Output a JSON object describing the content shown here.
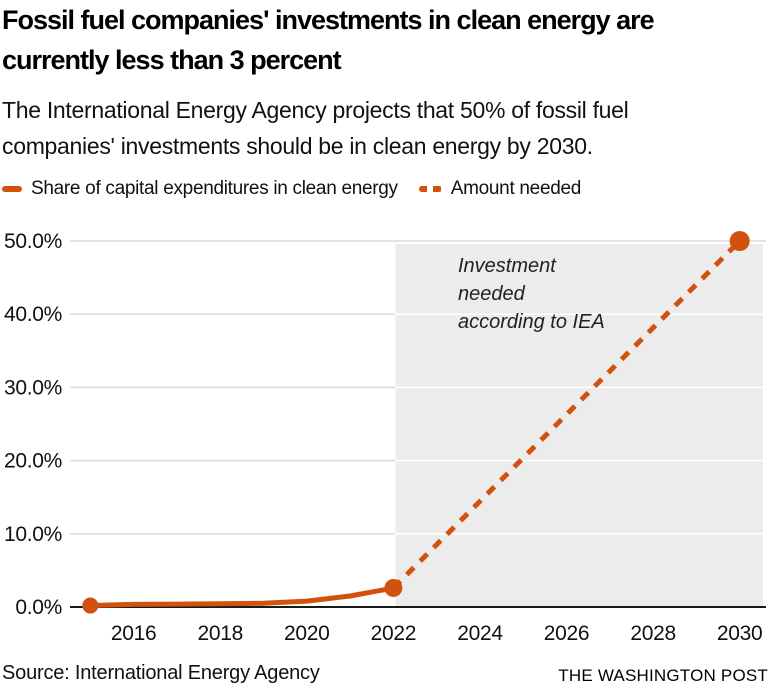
{
  "header": {
    "title_line1": "Fossil fuel companies' investments in clean energy are",
    "title_line2": "currently less than 3 percent",
    "subtitle_line1": "The International Energy Agency projects that 50% of fossil fuel",
    "subtitle_line2": "companies' investments should be in clean energy by 2030."
  },
  "legend": {
    "series1_label": "Share of capital expenditures in clean energy",
    "series2_label": "Amount needed"
  },
  "annotation": {
    "text": "Investment\nneeded\naccording to IEA"
  },
  "footer": {
    "source": "Source: International Energy Agency",
    "branding": "THE WASHINGTON POST"
  },
  "colors": {
    "accent": "#d2510e",
    "projection_bg": "#ececec",
    "gridline": "#d9d9d9",
    "gridline_on_shade": "#ffffff",
    "axis": "#1a1a1a"
  },
  "chart_data": {
    "type": "line",
    "title": "Fossil fuel companies' investments in clean energy are currently less than 3 percent",
    "xlabel": "",
    "ylabel": "Share of capital expenditures in clean energy",
    "xlim": [
      2014.53,
      2030.7
    ],
    "ylim": [
      0,
      50
    ],
    "xticks": [
      2016,
      2018,
      2020,
      2022,
      2024,
      2026,
      2028,
      2030
    ],
    "yticks": [
      0,
      10,
      20,
      30,
      40,
      50
    ],
    "ytick_labels": [
      "0.0%",
      "10.0%",
      "20.0%",
      "30.0%",
      "40.0%",
      "50.0%"
    ],
    "grid": true,
    "legend_position": "top",
    "projection_region": {
      "x_start": 2022,
      "label": "Investment needed according to IEA"
    },
    "series": [
      {
        "name": "Share of capital expenditures in clean energy",
        "style": "solid",
        "points": [
          [
            2015,
            0.2
          ],
          [
            2016,
            0.35
          ],
          [
            2017,
            0.4
          ],
          [
            2018,
            0.45
          ],
          [
            2019,
            0.5
          ],
          [
            2020,
            0.8
          ],
          [
            2021,
            1.5
          ],
          [
            2022,
            2.6
          ]
        ],
        "dots": [
          {
            "x": 2015,
            "y": 0.2,
            "r": 8
          },
          {
            "x": 2022,
            "y": 2.6,
            "r": 9
          }
        ]
      },
      {
        "name": "Amount needed",
        "style": "dashed",
        "points": [
          [
            2022,
            2.6
          ],
          [
            2030,
            50
          ]
        ],
        "dots": [
          {
            "x": 2030,
            "y": 50,
            "r": 10
          }
        ]
      }
    ]
  }
}
